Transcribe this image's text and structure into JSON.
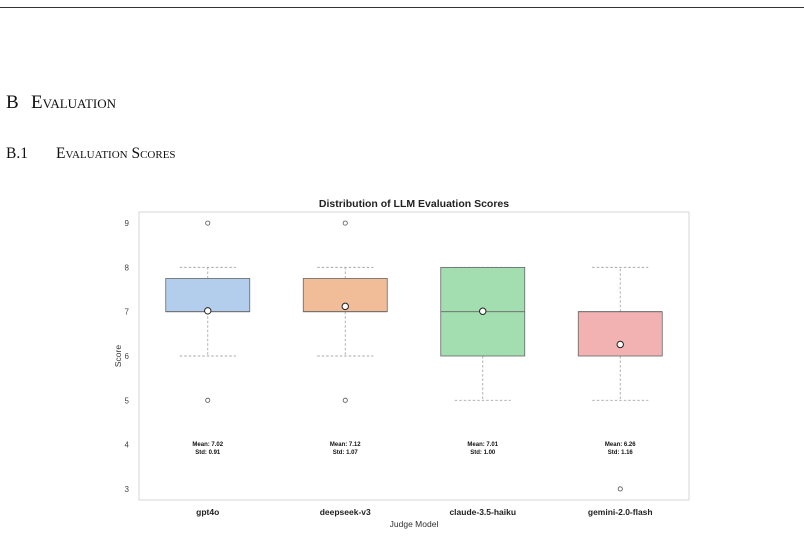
{
  "section": {
    "number": "B",
    "title": "Evaluation"
  },
  "subsection": {
    "number": "B.1",
    "title": "Evaluation Scores"
  },
  "chart_data": {
    "type": "box",
    "title": "Distribution of LLM Evaluation Scores",
    "xlabel": "Judge Model",
    "ylabel": "Score",
    "ylim": [
      2.75,
      9.25
    ],
    "yticks": [
      3,
      4,
      5,
      6,
      7,
      8,
      9
    ],
    "grid": false,
    "categories": [
      "gpt4o",
      "deepseek-v3",
      "claude-3.5-haiku",
      "gemini-2.0-flash"
    ],
    "boxes": [
      {
        "name": "gpt4o",
        "color": "#b3cdec",
        "q1": 7,
        "median": 7,
        "q3": 7.75,
        "whisker_low": 6,
        "whisker_high": 8,
        "mean": 7.02,
        "outliers": [
          9,
          5
        ],
        "mean_label": "Mean: 7.02",
        "std_label": "Std: 0.91"
      },
      {
        "name": "deepseek-v3",
        "color": "#f1bd98",
        "q1": 7,
        "median": 7,
        "q3": 7.75,
        "whisker_low": 6,
        "whisker_high": 8,
        "mean": 7.12,
        "outliers": [
          9,
          5
        ],
        "mean_label": "Mean: 7.12",
        "std_label": "Std: 1.07"
      },
      {
        "name": "claude-3.5-haiku",
        "color": "#a3deb0",
        "q1": 6,
        "median": 7,
        "q3": 8,
        "whisker_low": 5,
        "whisker_high": 8,
        "mean": 7.01,
        "outliers": [],
        "mean_label": "Mean: 7.01",
        "std_label": "Std: 1.00"
      },
      {
        "name": "gemini-2.0-flash",
        "color": "#f3b2b2",
        "q1": 6,
        "median": 7,
        "q3": 7,
        "whisker_low": 5,
        "whisker_high": 8,
        "mean": 6.26,
        "outliers": [
          3
        ],
        "mean_label": "Mean: 6.26",
        "std_label": "Std: 1.16"
      }
    ]
  }
}
